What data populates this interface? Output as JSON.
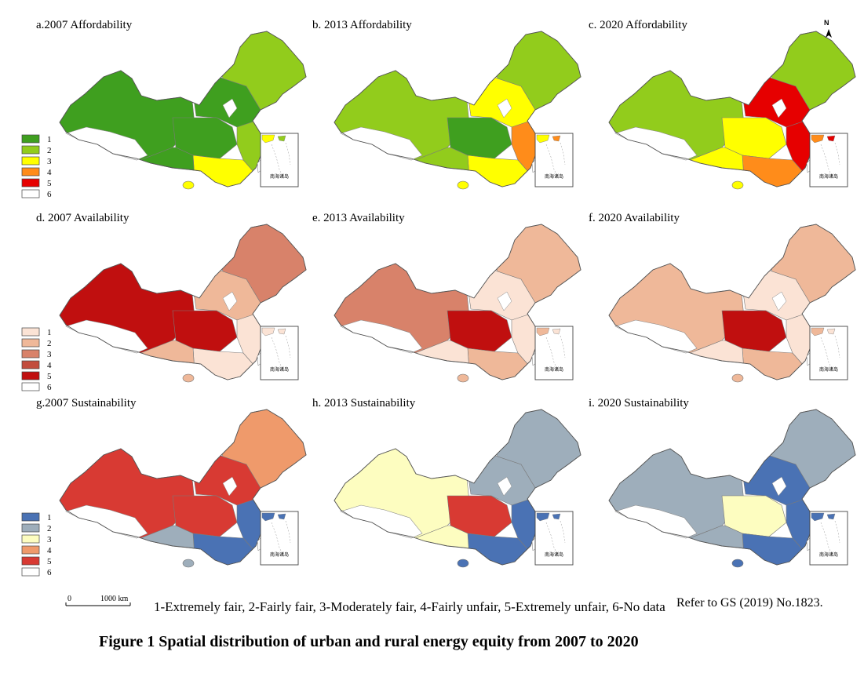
{
  "panels": [
    {
      "id": "a",
      "title": "a.2007 Affordability",
      "palette": "afford",
      "legend": true,
      "fills": {
        "northwest": 1,
        "northeast": 2,
        "north": 1,
        "central": 1,
        "east": 2,
        "south": 3,
        "southwest": 1,
        "hainan": 3
      }
    },
    {
      "id": "b",
      "title": "b.  2013 Affordability",
      "palette": "afford",
      "legend": false,
      "fills": {
        "northwest": 2,
        "northeast": 2,
        "north": 3,
        "central": 1,
        "east": 4,
        "south": 3,
        "southwest": 2,
        "hainan": 3
      }
    },
    {
      "id": "c",
      "title": "c.  2020 Affordability",
      "palette": "afford",
      "legend": false,
      "fills": {
        "northwest": 2,
        "northeast": 2,
        "north": 5,
        "central": 3,
        "east": 5,
        "south": 4,
        "southwest": 3,
        "hainan": 3
      }
    },
    {
      "id": "d",
      "title": "d. 2007  Availability",
      "palette": "avail",
      "legend": true,
      "fills": {
        "northwest": 5,
        "northeast": 3,
        "north": 2,
        "central": 5,
        "east": 1,
        "south": 1,
        "southwest": 2,
        "hainan": 2
      }
    },
    {
      "id": "e",
      "title": "e.  2013  Availability",
      "palette": "avail",
      "legend": false,
      "fills": {
        "northwest": 3,
        "northeast": 2,
        "north": 1,
        "central": 5,
        "east": 1,
        "south": 2,
        "southwest": 1,
        "hainan": 2
      }
    },
    {
      "id": "f",
      "title": "f.  2020  Availability",
      "palette": "avail",
      "legend": false,
      "fills": {
        "northwest": 2,
        "northeast": 2,
        "north": 1,
        "central": 5,
        "east": 1,
        "south": 2,
        "southwest": 1,
        "hainan": 2
      }
    },
    {
      "id": "g",
      "title": "g.2007 Sustainability",
      "palette": "sustain",
      "legend": true,
      "fills": {
        "northwest": 5,
        "northeast": 4,
        "north": 5,
        "central": 5,
        "east": 1,
        "south": 1,
        "southwest": 2,
        "hainan": 2
      }
    },
    {
      "id": "h",
      "title": "h.  2013 Sustainability",
      "palette": "sustain",
      "legend": false,
      "fills": {
        "northwest": 3,
        "northeast": 2,
        "north": 2,
        "central": 5,
        "east": 1,
        "south": 1,
        "southwest": 3,
        "hainan": 1
      }
    },
    {
      "id": "i",
      "title": "i.  2020 Sustainability",
      "palette": "sustain",
      "legend": false,
      "fills": {
        "northwest": 2,
        "northeast": 2,
        "north": 1,
        "central": 3,
        "east": 1,
        "south": 1,
        "southwest": 2,
        "hainan": 1
      }
    }
  ],
  "palettes": {
    "afford": [
      "#3f9f1f",
      "#92cc1c",
      "#ffff00",
      "#ff8c1a",
      "#e60000",
      "#ffffff"
    ],
    "avail": [
      "#fbe3d5",
      "#efb899",
      "#d8826a",
      "#c24d3e",
      "#c00f0f",
      "#ffffff"
    ],
    "sustain": [
      "#4a72b4",
      "#9eaebb",
      "#fdfdc0",
      "#ef9a6b",
      "#d83a33",
      "#ffffff"
    ]
  },
  "legend_numbers": [
    "1",
    "2",
    "3",
    "4",
    "5",
    "6"
  ],
  "north_arrow_label": "N",
  "inset_label": "南海诸岛",
  "scale": {
    "zero": "0",
    "distance": "1000 km"
  },
  "legend_note": "1-Extremely fair, 2-Fairly fair, 3-Moderately fair, 4-Fairly unfair, 5-Extremely unfair, 6-No data",
  "source_note": "Refer to GS (2019) No.1823.",
  "figure_title": "Figure 1  Spatial distribution of urban and rural energy equity from 2007 to 2020"
}
